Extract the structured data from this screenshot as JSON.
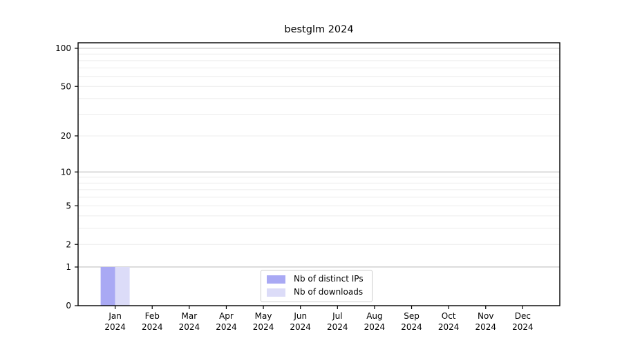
{
  "chart_data": {
    "type": "bar",
    "title": "bestglm 2024",
    "categories": [
      "Jan 2024",
      "Feb 2024",
      "Mar 2024",
      "Apr 2024",
      "May 2024",
      "Jun 2024",
      "Jul 2024",
      "Aug 2024",
      "Sep 2024",
      "Oct 2024",
      "Nov 2024",
      "Dec 2024"
    ],
    "series": [
      {
        "name": "Nb of distinct IPs",
        "color": "#a9a9f4",
        "values": [
          1,
          0,
          0,
          0,
          0,
          0,
          0,
          0,
          0,
          0,
          0,
          0
        ]
      },
      {
        "name": "Nb of downloads",
        "color": "#dcdcf8",
        "values": [
          1,
          0,
          0,
          0,
          0,
          0,
          0,
          0,
          0,
          0,
          0,
          0
        ]
      }
    ],
    "xlabel": "",
    "ylabel": "",
    "yscale": "log10(1+x)",
    "ylim": [
      0,
      110
    ],
    "y_tick_values": [
      0,
      1,
      2,
      5,
      10,
      20,
      50,
      100
    ],
    "y_major_grid_values": [
      1,
      10,
      100
    ],
    "y_minor_grid_values": [
      2,
      3,
      4,
      5,
      6,
      7,
      8,
      9,
      20,
      30,
      40,
      50,
      60,
      70,
      80,
      90
    ],
    "grid": true,
    "legend_position": "bottom-center",
    "colors": {
      "background": "#ffffff",
      "axis": "#000000",
      "tick_label": "#000000",
      "major_grid": "#c0c0c0",
      "minor_grid": "#ececec",
      "legend_border": "#cccccc"
    }
  }
}
